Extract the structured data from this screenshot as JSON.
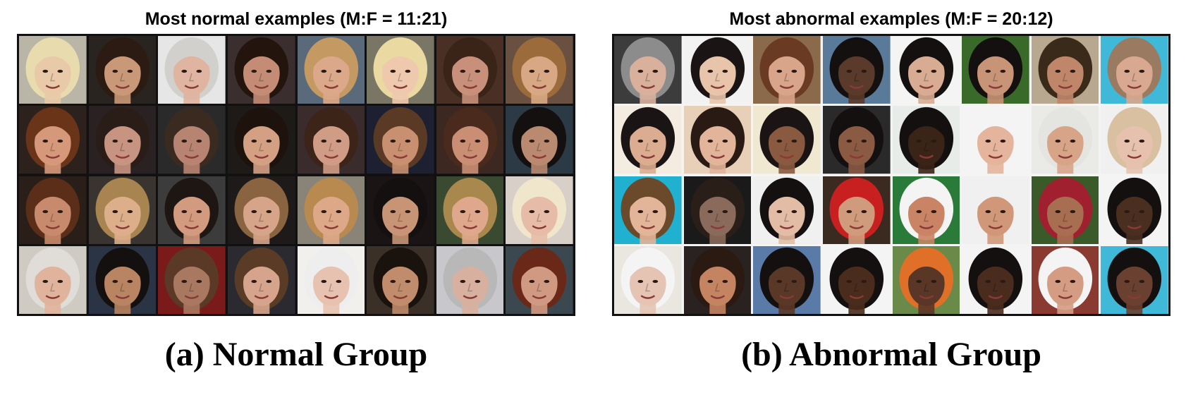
{
  "normal": {
    "grid_title": "Most normal examples (M:F = 11:21)",
    "caption": "(a) Normal Group",
    "faces": [
      {
        "bg": "#b9b6a8",
        "skin": "#e8c9a8",
        "hair": "#e8dcae"
      },
      {
        "bg": "#2a2420",
        "skin": "#c99878",
        "hair": "#2b1b12"
      },
      {
        "bg": "#e6e6e6",
        "skin": "#dfb4a0",
        "hair": "#d2d0cc"
      },
      {
        "bg": "#3a2e2e",
        "skin": "#c48c74",
        "hair": "#24140e"
      },
      {
        "bg": "#5a6a7a",
        "skin": "#dca88a",
        "hair": "#c59a62"
      },
      {
        "bg": "#7a7666",
        "skin": "#efc9ae",
        "hair": "#ead9a0"
      },
      {
        "bg": "#4a3024",
        "skin": "#c8907a",
        "hair": "#3a2418"
      },
      {
        "bg": "#6a5040",
        "skin": "#d7a883",
        "hair": "#9c6b3c"
      },
      {
        "bg": "#2c211c",
        "skin": "#d6987a",
        "hair": "#6a3418"
      },
      {
        "bg": "#2a2222",
        "skin": "#c89482",
        "hair": "#2a1c16"
      },
      {
        "bg": "#2a2a2a",
        "skin": "#b88472",
        "hair": "#3a2a20"
      },
      {
        "bg": "#1e1a18",
        "skin": "#d4a084",
        "hair": "#1e120c"
      },
      {
        "bg": "#3a2c2c",
        "skin": "#d09c86",
        "hair": "#3c2418"
      },
      {
        "bg": "#1c2030",
        "skin": "#c89070",
        "hair": "#5a3a24"
      },
      {
        "bg": "#3c2820",
        "skin": "#c98e74",
        "hair": "#4a2a1c"
      },
      {
        "bg": "#2c3a46",
        "skin": "#b98a70",
        "hair": "#141010"
      },
      {
        "bg": "#2a1e18",
        "skin": "#c88a6c",
        "hair": "#5a2e18"
      },
      {
        "bg": "#3a3430",
        "skin": "#dcae8a",
        "hair": "#a88450"
      },
      {
        "bg": "#3c3c3c",
        "skin": "#d29a7e",
        "hair": "#1e1612"
      },
      {
        "bg": "#1e1a1a",
        "skin": "#d6a488",
        "hair": "#8a6440"
      },
      {
        "bg": "#8a8478",
        "skin": "#dca888",
        "hair": "#b88a50"
      },
      {
        "bg": "#1a1414",
        "skin": "#c89476",
        "hair": "#141010"
      },
      {
        "bg": "#3a4a30",
        "skin": "#dfa88c",
        "hair": "#a8884c"
      },
      {
        "bg": "#d8d0c8",
        "skin": "#e6bca8",
        "hair": "#efe6cc"
      },
      {
        "bg": "#cfcac2",
        "skin": "#e0b49c",
        "hair": "#e0dcd8"
      },
      {
        "bg": "#2a3444",
        "skin": "#b88462",
        "hair": "#141010"
      },
      {
        "bg": "#7a1a1a",
        "skin": "#a87860",
        "hair": "#5a3a26"
      },
      {
        "bg": "#2a2a30",
        "skin": "#d6a48c",
        "hair": "#5a3c26"
      },
      {
        "bg": "#f2f0ec",
        "skin": "#e8c2b0",
        "hair": "#eeeeee"
      },
      {
        "bg": "#3a3028",
        "skin": "#c08c6c",
        "hair": "#1a120c"
      },
      {
        "bg": "#c8c8cc",
        "skin": "#d8b0a0",
        "hair": "#b8b8b8"
      },
      {
        "bg": "#3c4850",
        "skin": "#d09a82",
        "hair": "#6a2818"
      }
    ]
  },
  "abnormal": {
    "grid_title": "Most abnormal examples (M:F = 20:12)",
    "caption": "(b) Abnormal Group",
    "faces": [
      {
        "bg": "#3c3c3c",
        "skin": "#d8b09c",
        "hair": "#8c8c8c"
      },
      {
        "bg": "#f2f2f2",
        "skin": "#e8c4aa",
        "hair": "#1a1414"
      },
      {
        "bg": "#8a6a4a",
        "skin": "#d8a48a",
        "hair": "#6a3a22"
      },
      {
        "bg": "#5a7a9a",
        "skin": "#5a3a2a",
        "hair": "#141010"
      },
      {
        "bg": "#f4f4f4",
        "skin": "#d8ac92",
        "hair": "#141010"
      },
      {
        "bg": "#3a6a2a",
        "skin": "#c89478",
        "hair": "#141010"
      },
      {
        "bg": "#b8a890",
        "skin": "#c0866a",
        "hair": "#3a2a1a"
      },
      {
        "bg": "#40b8d8",
        "skin": "#d8a890",
        "hair": "#9a7a60"
      },
      {
        "bg": "#f4ece0",
        "skin": "#dcac90",
        "hair": "#1a1414"
      },
      {
        "bg": "#e8d0b8",
        "skin": "#e2b49a",
        "hair": "#2a1a14"
      },
      {
        "bg": "#f0e8d0",
        "skin": "#8a5a40",
        "hair": "#1a1414"
      },
      {
        "bg": "#2a2a2a",
        "skin": "#8a5a42",
        "hair": "#141010"
      },
      {
        "bg": "#e8ece8",
        "skin": "#3a2418",
        "hair": "#141010"
      },
      {
        "bg": "#f4f4f4",
        "skin": "#e4b49c",
        "hair": "#f4f4f4"
      },
      {
        "bg": "#eaeae6",
        "skin": "#d8a488",
        "hair": "#e4e4e0"
      },
      {
        "bg": "#f0f0f0",
        "skin": "#e6c2ae",
        "hair": "#d8c0a0"
      },
      {
        "bg": "#20b0d0",
        "skin": "#e2b498",
        "hair": "#6a4a2a"
      },
      {
        "bg": "#1a1a1a",
        "skin": "#8a6a5a",
        "hair": "#2a1e18"
      },
      {
        "bg": "#f0f0f0",
        "skin": "#e2bca4",
        "hair": "#141010"
      },
      {
        "bg": "#3a2a20",
        "skin": "#d09a7c",
        "hair": "#c82020"
      },
      {
        "bg": "#2a7a3a",
        "skin": "#c88464",
        "hair": "#f4f4f4"
      },
      {
        "bg": "#f0f0f0",
        "skin": "#d09878",
        "hair": "#f0f0f0"
      },
      {
        "bg": "#3a5a2a",
        "skin": "#a86e52",
        "hair": "#a02030"
      },
      {
        "bg": "#f4f4f4",
        "skin": "#4a2e20",
        "hair": "#141010"
      },
      {
        "bg": "#eae6e0",
        "skin": "#e6c4b4",
        "hair": "#f4f4f4"
      },
      {
        "bg": "#2a2220",
        "skin": "#c48462",
        "hair": "#2a1a12"
      },
      {
        "bg": "#5a7aa8",
        "skin": "#5a3828",
        "hair": "#141010"
      },
      {
        "bg": "#f4f4f4",
        "skin": "#4a2c1c",
        "hair": "#141010"
      },
      {
        "bg": "#6a8a4a",
        "skin": "#5a3626",
        "hair": "#e07028"
      },
      {
        "bg": "#f4f4f4",
        "skin": "#4a2c1e",
        "hair": "#141010"
      },
      {
        "bg": "#8a3a30",
        "skin": "#d49c82",
        "hair": "#f4f4f4"
      },
      {
        "bg": "#40b8d8",
        "skin": "#6a4030",
        "hair": "#141010"
      }
    ]
  }
}
